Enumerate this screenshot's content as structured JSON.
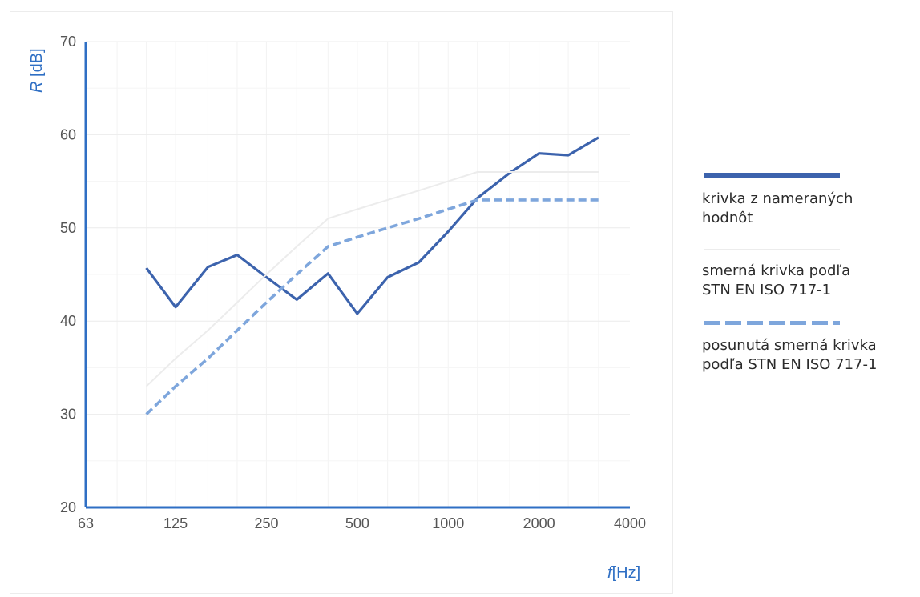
{
  "chart_data": {
    "type": "line",
    "title": "",
    "xlabel_symbol": "f",
    "xlabel_unit": "[Hz]",
    "ylabel_symbol": "R",
    "ylabel_unit": "[dB]",
    "x_scale": "log2",
    "x_ticks": [
      "63",
      "125",
      "250",
      "500",
      "1000",
      "2000",
      "4000"
    ],
    "y_ticks": [
      "20",
      "30",
      "40",
      "50",
      "60",
      "70"
    ],
    "ylim": [
      20,
      70
    ],
    "xlim": [
      63,
      4000
    ],
    "grid": true,
    "legend_position": "right",
    "series": [
      {
        "name": "krivka z nameraných hodnôt",
        "style": "solid",
        "color": "#3c63ad",
        "x": [
          100,
          125,
          160,
          200,
          250,
          315,
          400,
          500,
          630,
          800,
          1000,
          1250,
          1600,
          2000,
          2500,
          3150
        ],
        "values": [
          45.7,
          41.5,
          45.8,
          47.1,
          44.7,
          42.3,
          45.1,
          40.8,
          44.7,
          46.3,
          49.6,
          53.2,
          55.9,
          58.0,
          57.8,
          59.7
        ]
      },
      {
        "name": "smerná krivka podľa STN EN ISO 717-1",
        "style": "solid-light",
        "color": "#ececec",
        "x": [
          100,
          125,
          160,
          200,
          250,
          315,
          400,
          500,
          630,
          800,
          1000,
          1250,
          1600,
          2000,
          2500,
          3150
        ],
        "values": [
          33,
          36,
          39,
          42,
          45,
          48,
          51,
          52,
          53,
          54,
          55,
          56,
          56,
          56,
          56,
          56
        ]
      },
      {
        "name": "posunutá smerná krivka podľa STN EN ISO 717-1",
        "style": "dashed",
        "color": "#7ea6dc",
        "x": [
          100,
          125,
          160,
          200,
          250,
          315,
          400,
          500,
          630,
          800,
          1000,
          1250,
          1600,
          2000,
          2500,
          3150
        ],
        "values": [
          30,
          33,
          36,
          39,
          42,
          45,
          48,
          49,
          50,
          51,
          52,
          53,
          53,
          53,
          53,
          53
        ]
      }
    ]
  },
  "legend": {
    "measured_line1": "krivka z nameraných",
    "measured_line2": "hodnôt",
    "reference_line1": "smerná krivka podľa",
    "reference_line2": "STN EN ISO 717-1",
    "shifted_line1": "posunutá smerná krivka",
    "shifted_line2": "podľa STN EN ISO 717-1"
  }
}
